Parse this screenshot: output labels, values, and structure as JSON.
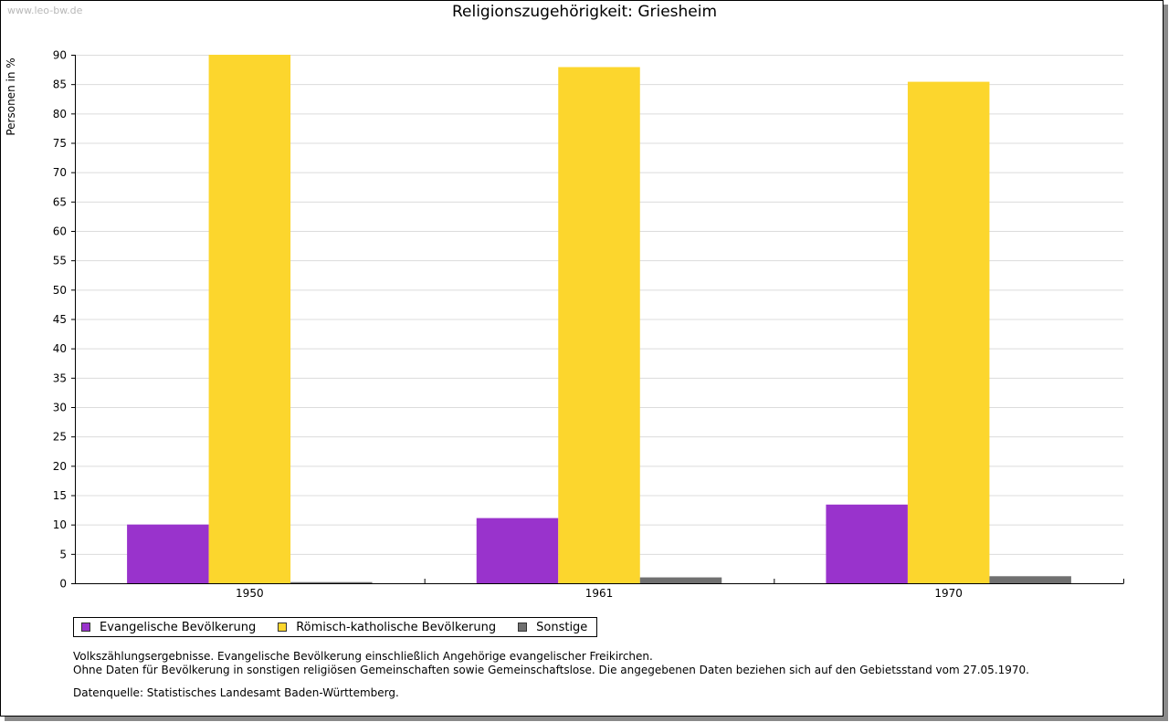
{
  "watermark": "www.leo-bw.de",
  "chart_data": {
    "type": "bar",
    "title": "Religionszugehörigkeit: Griesheim",
    "ylabel": "Personen in %",
    "xlabel": "",
    "categories": [
      "1950",
      "1961",
      "1970"
    ],
    "series": [
      {
        "name": "Evangelische Bevölkerung",
        "color": "#9933cc",
        "values": [
          10.0,
          11.1,
          13.4
        ]
      },
      {
        "name": "Römisch-katholische Bevölkerung",
        "color": "#fcd62d",
        "values": [
          90.0,
          87.9,
          85.4
        ]
      },
      {
        "name": "Sonstige",
        "color": "#707070",
        "values": [
          0.2,
          1.0,
          1.2
        ]
      }
    ],
    "ylim": [
      0,
      90
    ],
    "yticks": [
      0,
      5,
      10,
      15,
      20,
      25,
      30,
      35,
      40,
      45,
      50,
      55,
      60,
      65,
      70,
      75,
      80,
      85,
      90
    ],
    "grid": true,
    "legend_position": "bottom-left"
  },
  "notes": [
    "Volkszählungsergebnisse. Evangelische Bevölkerung einschließlich Angehörige evangelischer Freikirchen.",
    "Ohne Daten für Bevölkerung in sonstigen religiösen Gemeinschaften sowie Gemeinschaftslose. Die angegebenen Daten beziehen sich auf den Gebietsstand vom 27.05.1970."
  ],
  "source": "Datenquelle: Statistisches Landesamt Baden-Württemberg."
}
